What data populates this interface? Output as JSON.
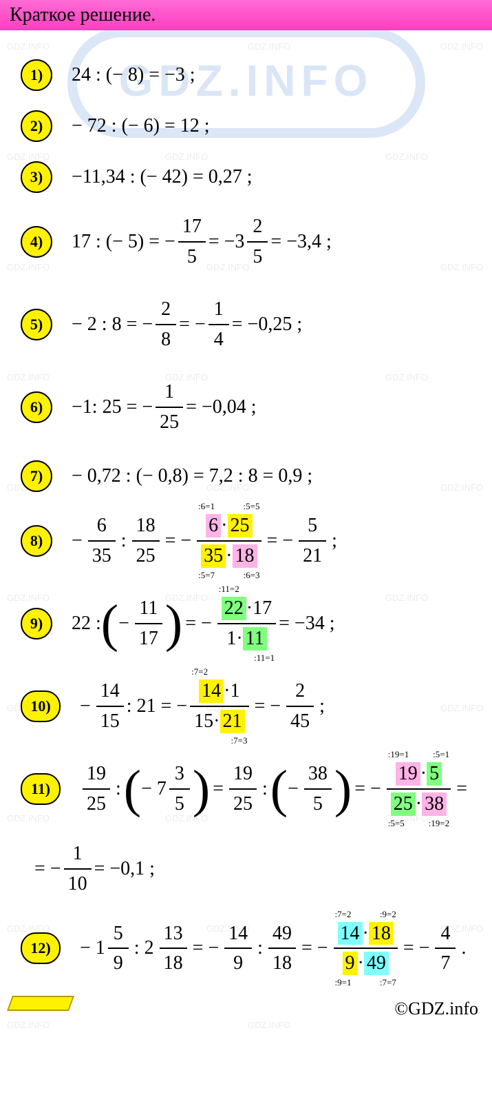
{
  "header": {
    "title": "Краткое решение.",
    "logo_text": "GDZ.INFO"
  },
  "colors": {
    "header_bg": "#ff3ec0",
    "badge_bg": "#fff200",
    "hl_pink": "#ffb3e6",
    "hl_yellow": "#fff200",
    "hl_green": "#80ff80",
    "hl_cyan": "#80ffff",
    "logo_blue": "#5a8fd8",
    "watermark": "#d0d0d0"
  },
  "watermark_text": "GDZ.INFO",
  "items": {
    "1": {
      "label": "1)",
      "text": "24 : (− 8) = −3 ;"
    },
    "2": {
      "label": "2)",
      "text": "− 72 : (− 6) = 12 ;"
    },
    "3": {
      "label": "3)",
      "text": "−11,34 : (− 42) = 0,27 ;"
    },
    "4": {
      "label": "4)",
      "pre": "17 : (− 5) = −",
      "f1n": "17",
      "f1d": "5",
      "mid": " = −3",
      "f2n": "2",
      "f2d": "5",
      "post": " = −3,4 ;"
    },
    "5": {
      "label": "5)",
      "pre": "− 2 : 8 = −",
      "f1n": "2",
      "f1d": "8",
      "mid": " = −",
      "f2n": "1",
      "f2d": "4",
      "post": " = −0,25 ;"
    },
    "6": {
      "label": "6)",
      "pre": "−1: 25 = −",
      "f1n": "1",
      "f1d": "25",
      "post": " = −0,04 ;"
    },
    "7": {
      "label": "7)",
      "text": "− 0,72 : (− 0,8) = 7,2 : 8 = 0,9 ;"
    },
    "8": {
      "label": "8)",
      "f1n": "6",
      "f1d": "35",
      "f2n": "18",
      "f2d": "25",
      "a1t": ":6=1",
      "a1b": ":5=7",
      "a2t": ":5=5",
      "a2b": ":6=3",
      "c_n1": "6",
      "c_n2": "25",
      "c_d1": "35",
      "c_d2": "18",
      "f3n": "5",
      "f3d": "21"
    },
    "9": {
      "label": "9)",
      "lead": "22 :",
      "f1n": "11",
      "f1d": "17",
      "a1t": ":11=2",
      "a1b": ":11=1",
      "c_n1": "22",
      "c_n2": "17",
      "c_d1": "1",
      "c_d2": "11",
      "res": " = −34 ;"
    },
    "10": {
      "label": "10)",
      "f1n": "14",
      "f1d": "15",
      "mid": ": 21 = −",
      "a1t": ":7=2",
      "a1b": ":7=3",
      "c_n1": "14",
      "c_n2": "1",
      "c_d1": "15",
      "c_d2": "21",
      "f3n": "2",
      "f3d": "45"
    },
    "11": {
      "label": "11)",
      "f1n": "19",
      "f1d": "25",
      "mixw": "7",
      "mixn": "3",
      "mixd": "5",
      "f2n": "19",
      "f2d_": "25",
      "f3n": "38",
      "f3d": "5",
      "a1t": ":19=1",
      "a2t": ":5=1",
      "a1b": ":5=5",
      "a2b": ":19=2",
      "c_n1": "19",
      "c_n2": "5",
      "c_d1": "25",
      "c_d2": "38",
      "cont_f_n": "1",
      "cont_f_d": "10",
      "cont_res": " = −0,1 ;"
    },
    "12": {
      "label": "12)",
      "m1w": "1",
      "m1n": "5",
      "m1d": "9",
      "m2w": "2",
      "m2n": "13",
      "m2d": "18",
      "f1n": "14",
      "f1d": "9",
      "f2n": "49",
      "f2d": "18",
      "a1t": ":7=2",
      "a2t": ":9=2",
      "a1b": ":9=1",
      "a2b": ":7=7",
      "c_n1": "14",
      "c_n2": "18",
      "c_d1": "9",
      "c_d2": "49",
      "f3n": "4",
      "f3d": "7"
    }
  },
  "copyright": "©GDZ.info"
}
